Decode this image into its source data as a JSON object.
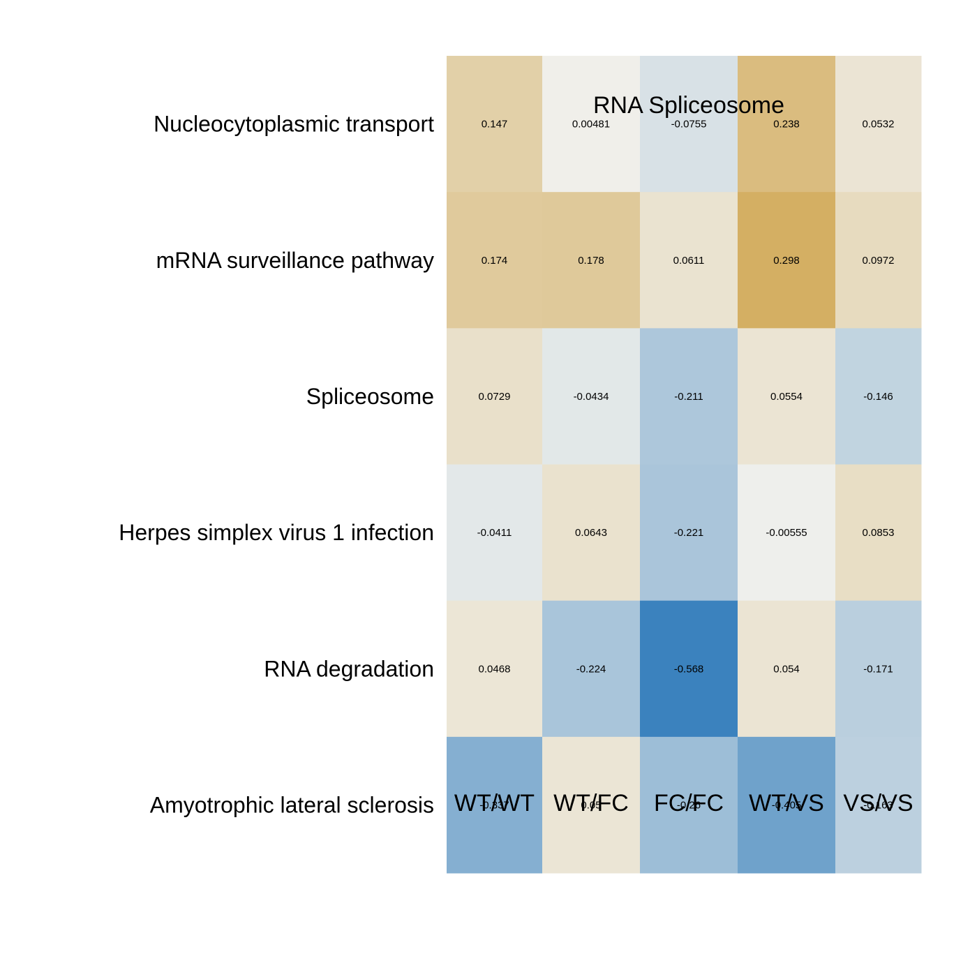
{
  "chart_data": {
    "type": "heatmap",
    "title": "RNA Spliceosome",
    "rows": [
      "Nucleocytoplasmic transport",
      "mRNA surveillance pathway",
      "Spliceosome",
      "Herpes simplex virus 1 infection",
      "RNA degradation",
      "Amyotrophic lateral sclerosis"
    ],
    "columns": [
      "WT/WT",
      "WT/FC",
      "FC/FC",
      "WT/VS",
      "VS/VS"
    ],
    "values": [
      [
        0.147,
        0.00481,
        -0.0755,
        0.238,
        0.0532
      ],
      [
        0.174,
        0.178,
        0.0611,
        0.298,
        0.0972
      ],
      [
        0.0729,
        -0.0434,
        -0.211,
        0.0554,
        -0.146
      ],
      [
        -0.0411,
        0.0643,
        -0.221,
        -0.00555,
        0.0853
      ],
      [
        0.0468,
        -0.224,
        -0.568,
        0.054,
        -0.171
      ],
      [
        -0.337,
        0.05,
        -0.26,
        -0.405,
        -0.163
      ]
    ],
    "value_labels": [
      [
        "0.147",
        "0.00481",
        "-0.0755",
        "0.238",
        "0.0532"
      ],
      [
        "0.174",
        "0.178",
        "0.0611",
        "0.298",
        "0.0972"
      ],
      [
        "0.0729",
        "-0.0434",
        "-0.211",
        "0.0554",
        "-0.146"
      ],
      [
        "-0.0411",
        "0.0643",
        "-0.221",
        "-0.00555",
        "0.0853"
      ],
      [
        "0.0468",
        "-0.224",
        "-0.568",
        "0.054",
        "-0.171"
      ],
      [
        "-0.337",
        "0.05",
        "-0.26",
        "-0.405",
        "-0.163"
      ]
    ],
    "color_scale": {
      "negative": "#3b82be",
      "neutral": "#f0f0ec",
      "positive": "#d4af62",
      "min": -0.568,
      "max": 0.3
    },
    "legend": "none",
    "grid": false
  }
}
